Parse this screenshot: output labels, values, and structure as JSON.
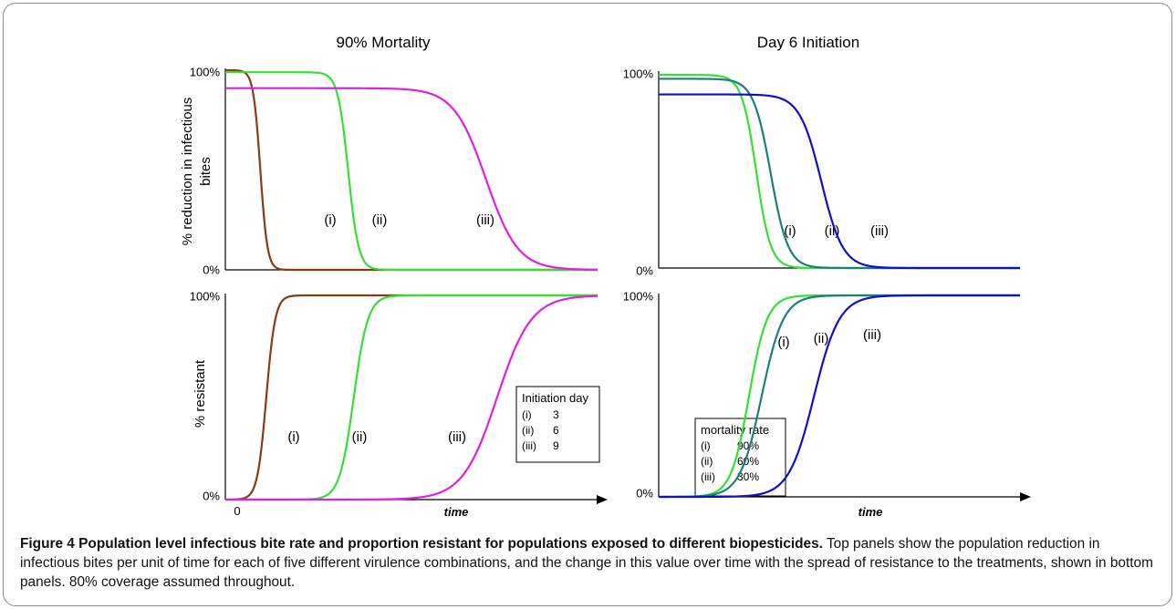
{
  "figure": {
    "caption_label": "Figure 4",
    "caption_title": "Population level infectious bite rate and proportion resistant for populations exposed to different biopesticides.",
    "caption_text": "Top panels show the population reduction in infectious bites per unit of time for each of five different virulence combinations, and the change in this value over time with the spread of resistance to the treatments, shown in bottom panels. 80% coverage assumed throughout."
  },
  "chart_data": [
    {
      "id": "top-left",
      "type": "line",
      "title": "90% Mortality",
      "ylabel": "% reduction in infectious bites",
      "ylabel_lines": [
        "% reduction in infectious",
        "bites"
      ],
      "xlabel": "",
      "yticks": [
        "100%",
        "0%"
      ],
      "ylim": [
        0,
        100
      ],
      "xlim": [
        0,
        100
      ],
      "series": [
        {
          "label": "(i)",
          "color": "#8b3a13",
          "type": "decline",
          "level": 100,
          "midpoint": 9.4,
          "width": 0.95
        },
        {
          "label": "(ii)",
          "color": "#33e033",
          "type": "decline",
          "level": 99,
          "midpoint": 33.0,
          "width": 1.4
        },
        {
          "label": "(iii)",
          "color": "#e020e0",
          "type": "decline",
          "level": 91,
          "midpoint": 70.0,
          "width": 4.3
        }
      ]
    },
    {
      "id": "top-right",
      "type": "line",
      "title": "Day 6 Initiation",
      "ylabel": "",
      "xlabel": "",
      "yticks": [
        "100%",
        "0%"
      ],
      "ylim": [
        0,
        100
      ],
      "xlim": [
        0,
        100
      ],
      "series": [
        {
          "label": "(i)",
          "color": "#33e033",
          "type": "decline",
          "level": 99,
          "midpoint": 27.0,
          "width": 2.0
        },
        {
          "label": "(ii)",
          "color": "#1e7f7a",
          "type": "decline",
          "level": 97,
          "midpoint": 31.0,
          "width": 2.4
        },
        {
          "label": "(iii)",
          "color": "#1010cc",
          "type": "decline",
          "level": 89,
          "midpoint": 45.0,
          "width": 3.0
        }
      ]
    },
    {
      "id": "bottom-left",
      "type": "line",
      "title": "",
      "ylabel": "% resistant",
      "xlabel": "time",
      "yticks": [
        "100%",
        "0%"
      ],
      "xticks": [
        "0"
      ],
      "ylim": [
        0,
        100
      ],
      "xlim": [
        0,
        100
      ],
      "legend": {
        "title": "Initiation day",
        "placement": "right",
        "entries": [
          {
            "label": "(i)",
            "value": "3"
          },
          {
            "label": "(ii)",
            "value": "6"
          },
          {
            "label": "(iii)",
            "value": "9"
          }
        ]
      },
      "series": [
        {
          "label": "(i)",
          "color": "#8b3a13",
          "type": "rise",
          "level": 100,
          "midpoint": 11.0,
          "width": 1.2
        },
        {
          "label": "(ii)",
          "color": "#33e033",
          "type": "rise",
          "level": 100,
          "midpoint": 34.5,
          "width": 1.9
        },
        {
          "label": "(iii)",
          "color": "#e020e0",
          "type": "rise",
          "level": 100,
          "midpoint": 73.0,
          "width": 4.6
        }
      ]
    },
    {
      "id": "bottom-right",
      "type": "line",
      "title": "",
      "ylabel": "",
      "xlabel": "time",
      "yticks": [
        "100%",
        "0%"
      ],
      "ylim": [
        0,
        100
      ],
      "xlim": [
        0,
        100
      ],
      "legend": {
        "title": "mortality rate",
        "placement": "left",
        "entries": [
          {
            "label": "(i)",
            "value": "90%"
          },
          {
            "label": "(ii)",
            "value": "60%"
          },
          {
            "label": "(iii)",
            "value": "30%"
          }
        ]
      },
      "series": [
        {
          "label": "(i)",
          "color": "#33e033",
          "type": "rise",
          "level": 100,
          "midpoint": 25.0,
          "width": 2.5
        },
        {
          "label": "(ii)",
          "color": "#1e7f7a",
          "type": "rise",
          "level": 100,
          "midpoint": 28.5,
          "width": 3.0
        },
        {
          "label": "(iii)",
          "color": "#1010cc",
          "type": "rise",
          "level": 100,
          "midpoint": 43.0,
          "width": 3.5
        }
      ]
    }
  ]
}
